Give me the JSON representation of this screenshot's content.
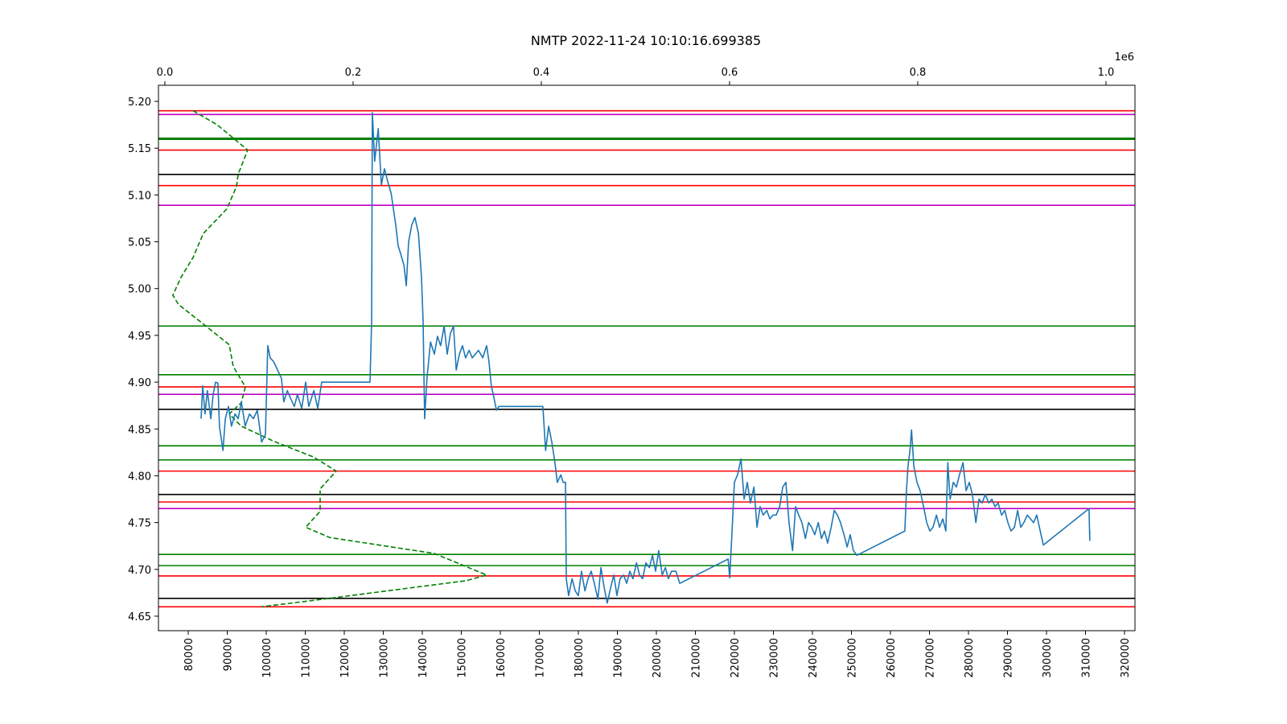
{
  "chart_data": {
    "type": "line",
    "title": "NMTP 2022-11-24 10:10:16.699385",
    "xlim": [
      72370,
      322680
    ],
    "xticks": [
      80000,
      90000,
      100000,
      110000,
      120000,
      130000,
      140000,
      150000,
      160000,
      170000,
      180000,
      190000,
      200000,
      210000,
      220000,
      230000,
      240000,
      250000,
      260000,
      270000,
      280000,
      290000,
      300000,
      310000,
      320000
    ],
    "x2lim": [
      -6800,
      1030800
    ],
    "x2ticks": [
      {
        "value": 0,
        "label": "0.0"
      },
      {
        "value": 200000,
        "label": "0.2"
      },
      {
        "value": 400000,
        "label": "0.4"
      },
      {
        "value": 600000,
        "label": "0.6"
      },
      {
        "value": 800000,
        "label": "0.8"
      },
      {
        "value": 1000000,
        "label": "1.0"
      }
    ],
    "x2_offset_label": "1e6",
    "ylim": [
      4.6345,
      5.2172
    ],
    "yticks": [
      4.65,
      {
        "value": 4.7,
        "label": "4.70"
      },
      4.75,
      {
        "value": 4.8,
        "label": "4.80"
      },
      4.85,
      {
        "value": 4.9,
        "label": "4.90"
      },
      4.95,
      {
        "value": 5.0,
        "label": "5.00"
      },
      5.05,
      {
        "value": 5.1,
        "label": "5.10"
      },
      5.15,
      {
        "value": 5.2,
        "label": "5.20"
      }
    ],
    "hlines": [
      {
        "value": 5.19,
        "color": "#ff0000"
      },
      {
        "value": 5.148,
        "color": "#ff0000"
      },
      {
        "value": 5.11,
        "color": "#ff0000"
      },
      {
        "value": 4.895,
        "color": "#ff0000"
      },
      {
        "value": 4.805,
        "color": "#ff0000"
      },
      {
        "value": 4.772,
        "color": "#ff0000"
      },
      {
        "value": 4.693,
        "color": "#ff0000"
      },
      {
        "value": 4.66,
        "color": "#ff0000"
      },
      {
        "value": 5.186,
        "color": "#bf00bf"
      },
      {
        "value": 5.089,
        "color": "#bf00bf"
      },
      {
        "value": 4.887,
        "color": "#bf00bf"
      },
      {
        "value": 4.765,
        "color": "#bf00bf"
      },
      {
        "value": 5.16,
        "color": "#008000",
        "linewidth": 3
      },
      {
        "value": 4.96,
        "color": "#008000"
      },
      {
        "value": 4.908,
        "color": "#008000"
      },
      {
        "value": 4.832,
        "color": "#008000"
      },
      {
        "value": 4.817,
        "color": "#008000"
      },
      {
        "value": 4.716,
        "color": "#008000"
      },
      {
        "value": 4.704,
        "color": "#008000"
      },
      {
        "value": 5.122,
        "color": "#000000"
      },
      {
        "value": 4.871,
        "color": "#000000"
      },
      {
        "value": 4.78,
        "color": "#000000"
      },
      {
        "value": 4.669,
        "color": "#000000"
      }
    ],
    "series": [
      {
        "color": "#008000",
        "axis": "x2",
        "linestyle": "dashed",
        "x": [
          29900,
          55600,
          88000,
          77800,
          76100,
          65800,
          41000,
          29900,
          17100,
          8500,
          14500,
          38500,
          68400,
          72600,
          85500,
          81200,
          68400,
          81200,
          115400,
          158100,
          182100,
          165000,
          165000,
          149600,
          175200,
          286300,
          341900,
          320500,
          166700,
          102600
        ],
        "values": [
          5.19,
          5.175,
          5.148,
          5.122,
          5.109,
          5.085,
          5.059,
          5.033,
          5.012,
          4.993,
          4.983,
          4.964,
          4.94,
          4.917,
          4.895,
          4.878,
          4.866,
          4.853,
          4.837,
          4.82,
          4.805,
          4.786,
          4.762,
          4.745,
          4.734,
          4.717,
          4.694,
          4.688,
          4.668,
          4.66
        ]
      },
      {
        "color": "#1f77b4",
        "linestyle": "solid",
        "x": [
          83300,
          83700,
          84300,
          84900,
          85800,
          86400,
          87000,
          87600,
          88000,
          88900,
          89500,
          90300,
          91100,
          92000,
          92800,
          93600,
          94600,
          95700,
          96700,
          97700,
          98800,
          99800,
          100400,
          101000,
          101900,
          102900,
          103900,
          104500,
          105400,
          106200,
          107200,
          108000,
          109100,
          110100,
          110900,
          112200,
          113200,
          114200,
          115300,
          126600,
          127000,
          127200,
          127800,
          128700,
          129500,
          130300,
          131100,
          132000,
          132600,
          133200,
          133800,
          134400,
          135300,
          135900,
          136500,
          137300,
          138100,
          139000,
          139800,
          140200,
          140600,
          141200,
          142100,
          143100,
          143900,
          144700,
          145600,
          146400,
          147200,
          148000,
          148700,
          149500,
          150300,
          151100,
          152000,
          152800,
          153600,
          154400,
          155500,
          156500,
          157100,
          157700,
          158400,
          159000,
          159600,
          170900,
          171600,
          172400,
          173200,
          174000,
          174600,
          175500,
          176100,
          176700,
          176900,
          177500,
          178400,
          179200,
          180000,
          180800,
          181700,
          182500,
          183300,
          184100,
          185000,
          185800,
          186600,
          187400,
          188300,
          189100,
          189900,
          190700,
          191600,
          192400,
          193200,
          194000,
          194900,
          195700,
          196500,
          197300,
          198200,
          199000,
          199800,
          200600,
          201500,
          202300,
          203100,
          203900,
          205000,
          206000,
          218400,
          218800,
          219400,
          220000,
          220800,
          221700,
          222500,
          223300,
          224100,
          225000,
          225800,
          226600,
          227400,
          228300,
          229100,
          229900,
          230700,
          231600,
          232400,
          233200,
          234000,
          234900,
          235700,
          236500,
          237300,
          238200,
          239000,
          239800,
          240600,
          241500,
          242300,
          243100,
          243900,
          244800,
          245600,
          246400,
          247200,
          248100,
          248900,
          249700,
          250500,
          251400,
          263700,
          264100,
          264500,
          265000,
          265400,
          266000,
          266800,
          267600,
          268500,
          269300,
          270100,
          270900,
          271800,
          272600,
          273400,
          274200,
          274700,
          275300,
          276100,
          276900,
          277700,
          278600,
          279400,
          280200,
          281000,
          281900,
          282700,
          283500,
          284300,
          285200,
          286000,
          286800,
          287600,
          288500,
          289300,
          290100,
          290900,
          291800,
          292600,
          293400,
          294200,
          295100,
          295900,
          296700,
          297500,
          298400,
          299200,
          310900,
          311100,
          311100
        ],
        "values": [
          4.861,
          4.896,
          4.866,
          4.891,
          4.861,
          4.887,
          4.9,
          4.899,
          4.853,
          4.827,
          4.861,
          4.874,
          4.853,
          4.866,
          4.861,
          4.879,
          4.853,
          4.866,
          4.861,
          4.87,
          4.836,
          4.844,
          4.939,
          4.926,
          4.922,
          4.913,
          4.904,
          4.879,
          4.891,
          4.883,
          4.874,
          4.887,
          4.872,
          4.9,
          4.874,
          4.891,
          4.872,
          4.9,
          4.9,
          4.9,
          4.965,
          5.188,
          5.136,
          5.171,
          5.111,
          5.128,
          5.115,
          5.102,
          5.085,
          5.068,
          5.046,
          5.038,
          5.025,
          5.003,
          5.05,
          5.068,
          5.076,
          5.059,
          5.012,
          4.965,
          4.861,
          4.904,
          4.943,
          4.93,
          4.949,
          4.939,
          4.96,
          4.93,
          4.952,
          4.96,
          4.913,
          4.93,
          4.939,
          4.926,
          4.934,
          4.926,
          4.93,
          4.934,
          4.926,
          4.939,
          4.922,
          4.896,
          4.883,
          4.87,
          4.874,
          4.874,
          4.827,
          4.853,
          4.836,
          4.814,
          4.793,
          4.801,
          4.793,
          4.793,
          4.69,
          4.672,
          4.69,
          4.677,
          4.672,
          4.698,
          4.677,
          4.69,
          4.698,
          4.685,
          4.668,
          4.702,
          4.681,
          4.664,
          4.681,
          4.694,
          4.672,
          4.69,
          4.694,
          4.685,
          4.698,
          4.69,
          4.707,
          4.694,
          4.69,
          4.707,
          4.702,
          4.715,
          4.698,
          4.72,
          4.694,
          4.702,
          4.69,
          4.698,
          4.698,
          4.685,
          4.711,
          4.691,
          4.741,
          4.793,
          4.801,
          4.818,
          4.775,
          4.793,
          4.771,
          4.788,
          4.745,
          4.767,
          4.758,
          4.763,
          4.754,
          4.758,
          4.758,
          4.767,
          4.788,
          4.793,
          4.75,
          4.72,
          4.767,
          4.758,
          4.75,
          4.733,
          4.75,
          4.745,
          4.737,
          4.75,
          4.733,
          4.741,
          4.728,
          4.745,
          4.763,
          4.758,
          4.75,
          4.737,
          4.724,
          4.737,
          4.72,
          4.715,
          4.741,
          4.784,
          4.81,
          4.827,
          4.849,
          4.81,
          4.793,
          4.784,
          4.767,
          4.75,
          4.741,
          4.745,
          4.758,
          4.745,
          4.754,
          4.741,
          4.814,
          4.775,
          4.793,
          4.788,
          4.801,
          4.814,
          4.784,
          4.793,
          4.78,
          4.75,
          4.775,
          4.771,
          4.78,
          4.771,
          4.775,
          4.767,
          4.771,
          4.758,
          4.763,
          4.75,
          4.741,
          4.745,
          4.763,
          4.745,
          4.75,
          4.758,
          4.754,
          4.75,
          4.758,
          4.741,
          4.726,
          4.765,
          4.731,
          4.741
        ]
      }
    ]
  }
}
